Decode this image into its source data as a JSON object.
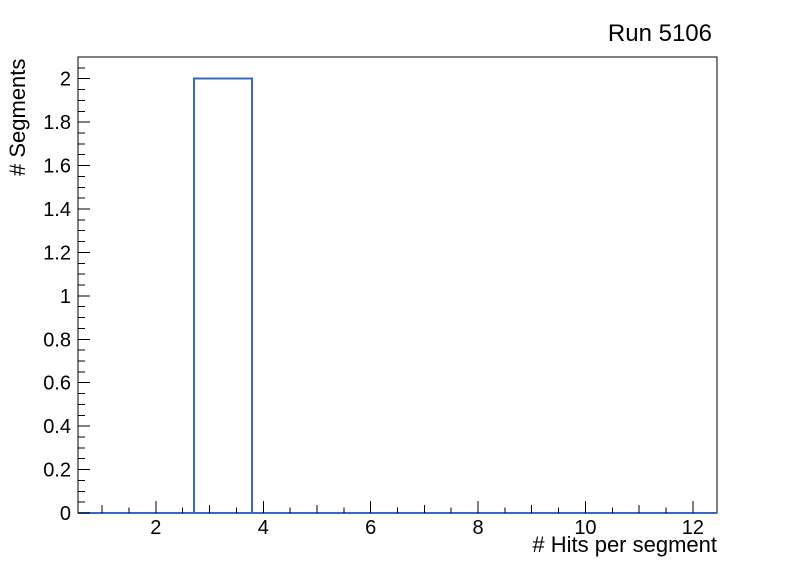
{
  "chart_data": {
    "type": "bar",
    "title": "Run 5106",
    "xlabel": "# Hits per segment",
    "ylabel": "# Segments",
    "xlim": [
      0.55,
      12.45
    ],
    "ylim": [
      0,
      2.1
    ],
    "grid": false,
    "legend": false,
    "bars": [
      {
        "x_start": 2.71,
        "x_end": 3.79,
        "value": 2
      }
    ],
    "baseline_value": 0,
    "x_ticks": {
      "major_values": [
        2,
        4,
        6,
        8,
        10,
        12
      ],
      "major_labels": [
        "2",
        "4",
        "6",
        "8",
        "10",
        "12"
      ],
      "medium_values": [
        1,
        3,
        5,
        7,
        9,
        11
      ],
      "minor_step": 0.5
    },
    "y_ticks": {
      "major_step": 0.2,
      "minor_step": 0.05,
      "major_labels": [
        "0",
        "0.2",
        "0.4",
        "0.6",
        "0.8",
        "1",
        "1.2",
        "1.4",
        "1.6",
        "1.8",
        "2"
      ]
    },
    "colors": {
      "histogram_line": "#3a66c4",
      "axis": "#000000",
      "text": "#000000",
      "background": "#ffffff"
    }
  }
}
